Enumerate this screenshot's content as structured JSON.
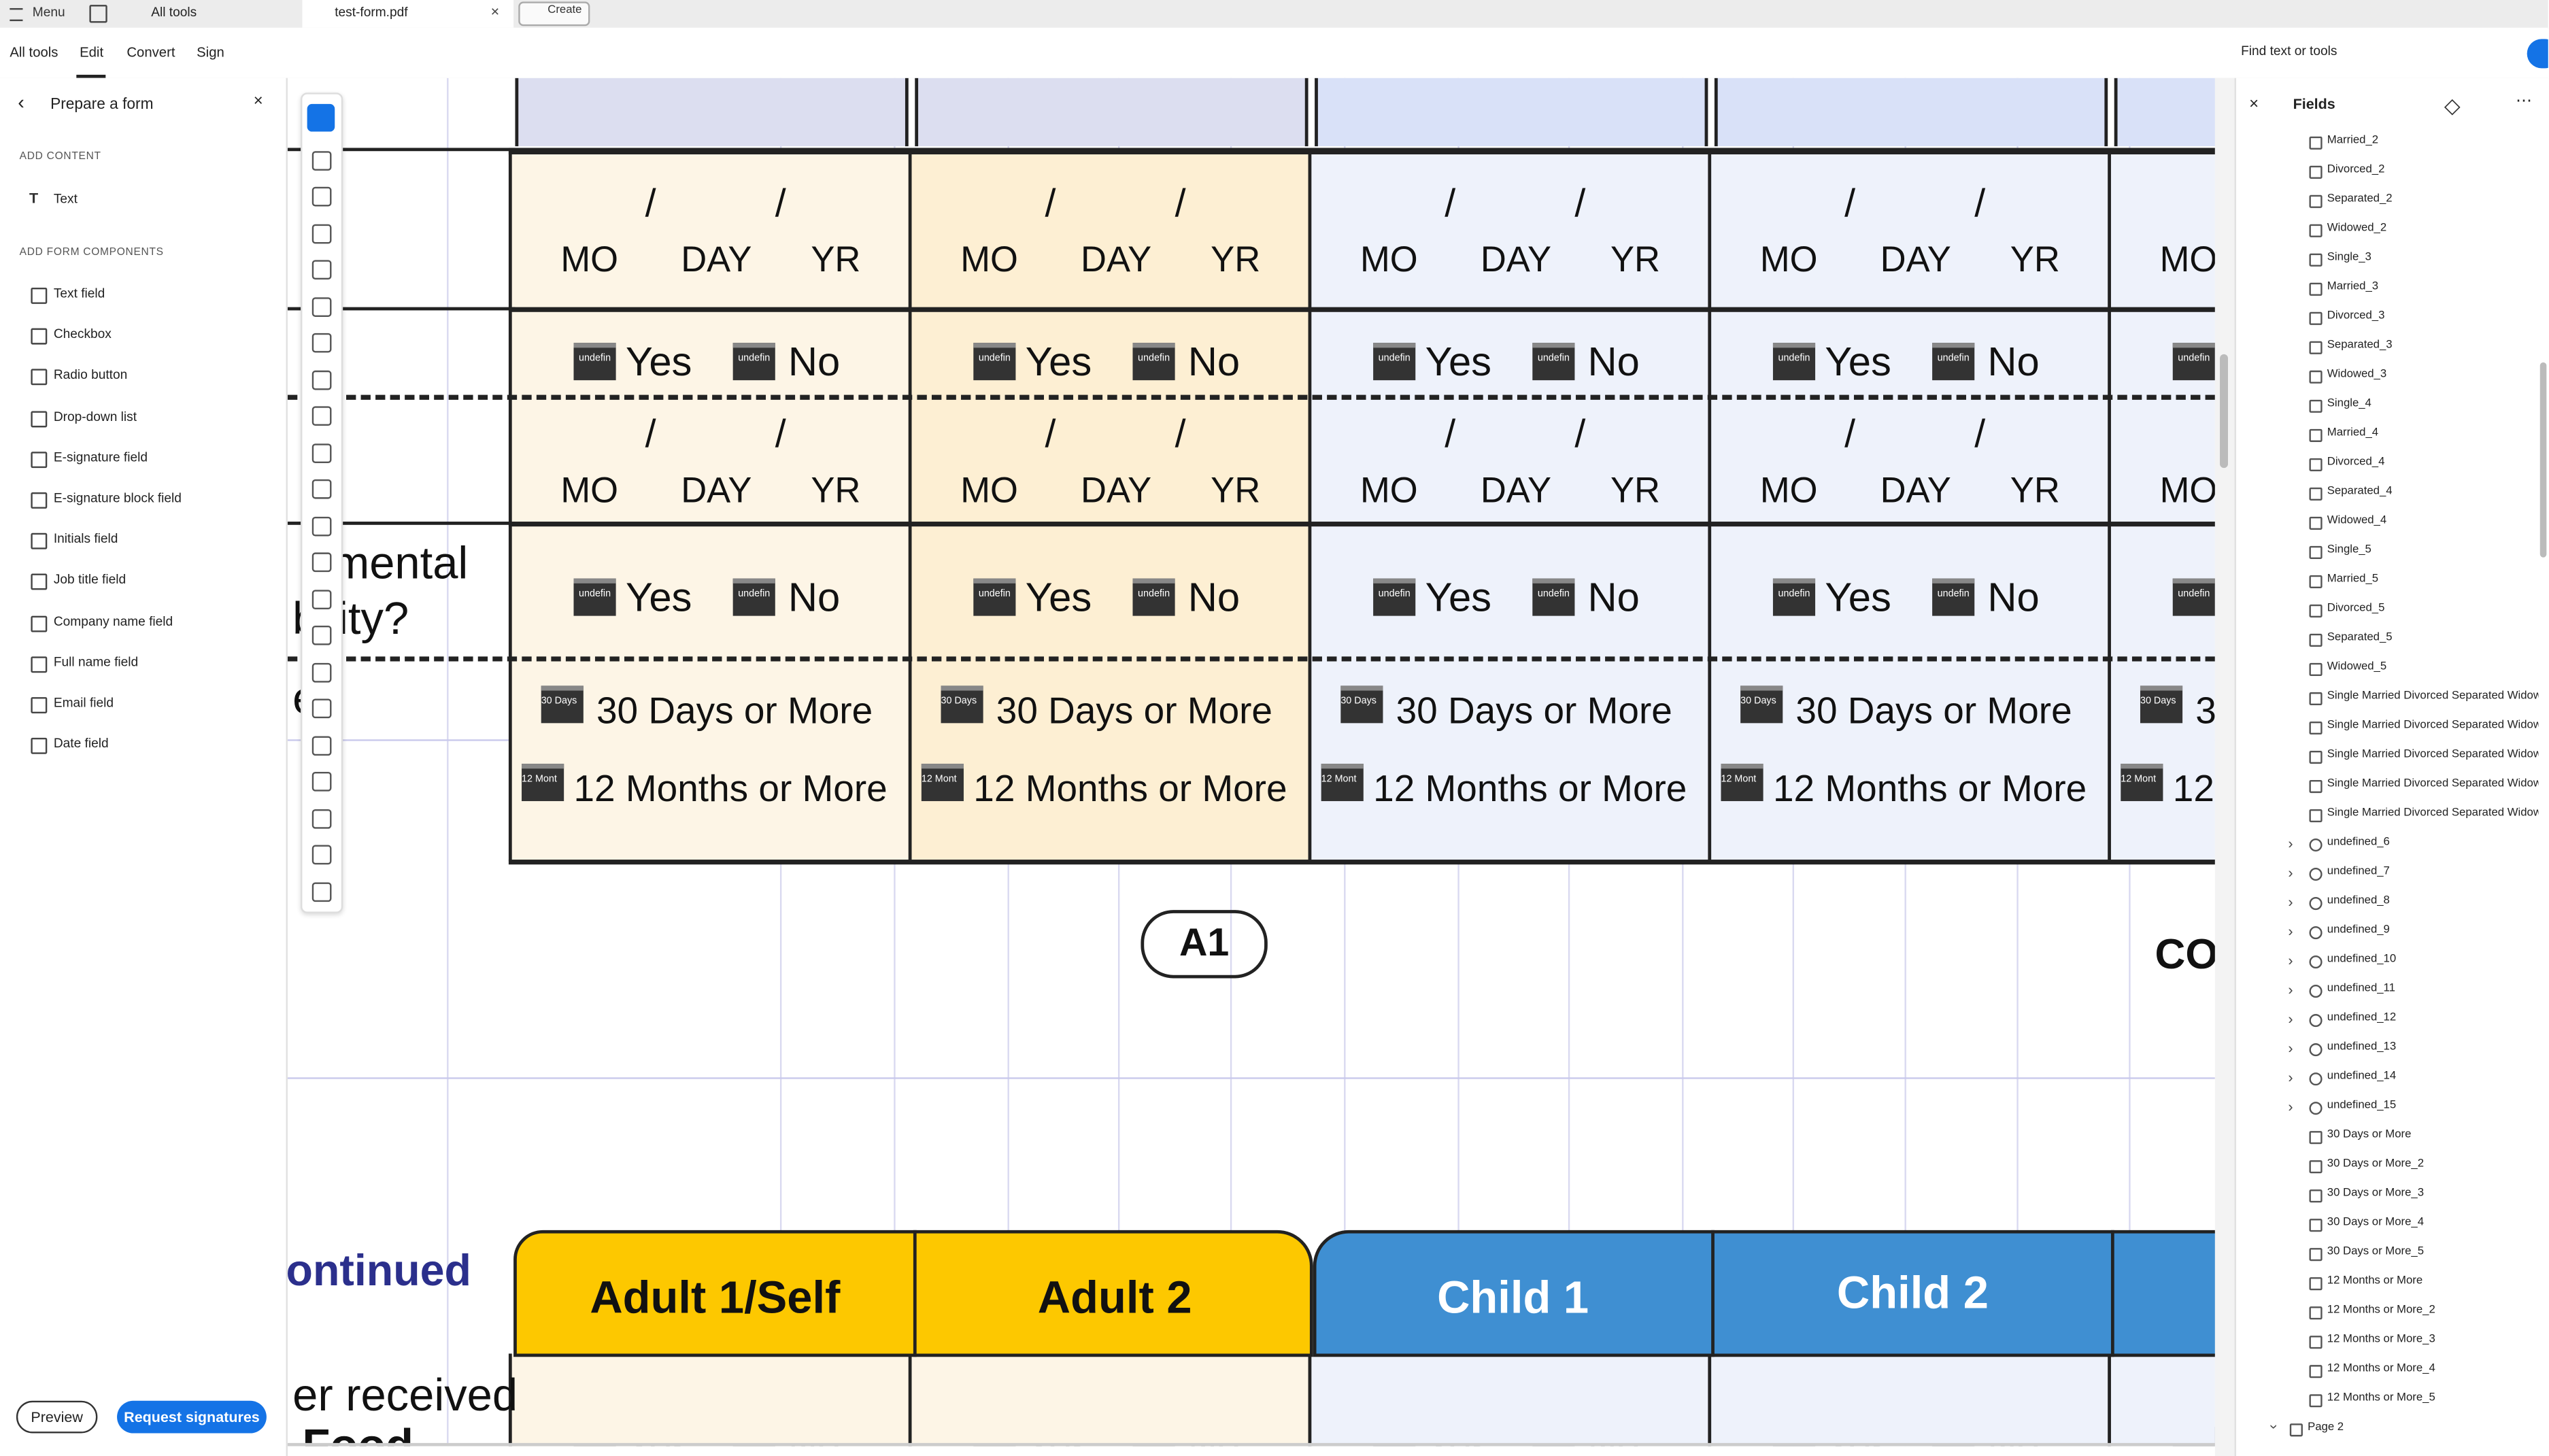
{
  "tabs": {
    "menu": "Menu",
    "all_tools": "All tools",
    "file": "test-form.pdf",
    "create": "Create"
  },
  "nav": {
    "items": [
      "All tools",
      "Edit",
      "Convert",
      "Sign"
    ],
    "search": "Find text or tools"
  },
  "left_panel": {
    "title": "Prepare a form",
    "content_heading": "ADD CONTENT",
    "content_items": [
      "Text"
    ],
    "components_heading": "ADD FORM COMPONENTS",
    "components": [
      "Text field",
      "Checkbox",
      "Radio button",
      "Drop-down list",
      "E-signature field",
      "E-signature block field",
      "Initials field",
      "Job title field",
      "Company name field",
      "Full name field",
      "Email field",
      "Date field"
    ],
    "preview": "Preview",
    "request": "Request signatures"
  },
  "form": {
    "slash": "/",
    "date_parts": [
      "MO",
      "DAY",
      "YR"
    ],
    "yes": "Yes",
    "no": "No",
    "field_tag": "undefin",
    "days": "30 Days or More",
    "days_tag": "30 Days",
    "months": "12 Months or More",
    "months_tag": "12 Mont",
    "row_labels": [
      "mental",
      "bility?",
      "ed"
    ],
    "badge": "A1",
    "badge_right": "CO",
    "section_label": "ontinued",
    "headers": [
      "Adult 1/Self",
      "Adult 2",
      "Child 1",
      "Child 2"
    ],
    "lower_labels": [
      "er received",
      "Food"
    ]
  },
  "fields_panel": {
    "title": "Fields",
    "checkboxes": [
      "Married_2",
      "Divorced_2",
      "Separated_2",
      "Widowed_2",
      "Single_3",
      "Married_3",
      "Divorced_3",
      "Separated_3",
      "Widowed_3",
      "Single_4",
      "Married_4",
      "Divorced_4",
      "Separated_4",
      "Widowed_4",
      "Single_5",
      "Married_5",
      "Divorced_5",
      "Separated_5",
      "Widowed_5"
    ],
    "lists": [
      "Single Married Divorced Separated Widowed",
      "Single Married Divorced Separated Widowed",
      "Single Married Divorced Separated Widowed",
      "Single Married Divorced Separated Widowed",
      "Single Married Divorced Separated Widowed"
    ],
    "groups": [
      "undefined_6",
      "undefined_7",
      "undefined_8",
      "undefined_9",
      "undefined_10",
      "undefined_11",
      "undefined_12",
      "undefined_13",
      "undefined_14",
      "undefined_15"
    ],
    "checkboxes_2": [
      "30 Days or More",
      "30 Days or More_2",
      "30 Days or More_3",
      "30 Days or More_4",
      "30 Days or More_5",
      "12 Months or More",
      "12 Months or More_2",
      "12 Months or More_3",
      "12 Months or More_4",
      "12 Months or More_5"
    ],
    "page": "Page 2"
  }
}
